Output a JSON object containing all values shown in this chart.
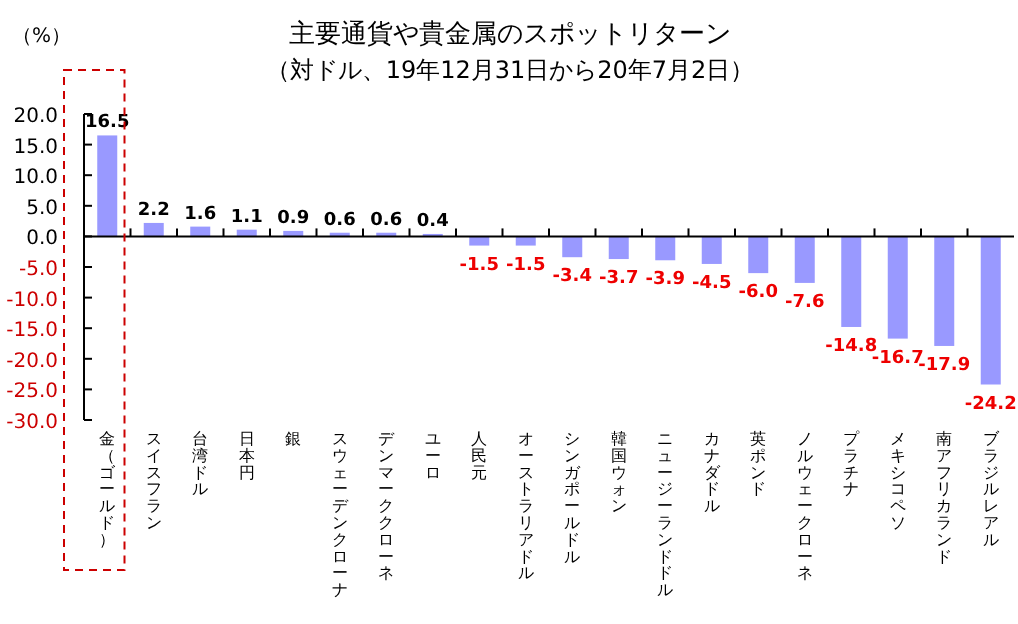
{
  "chart_data": {
    "type": "bar",
    "title": "主要通貨や貴金属のスポットリターン",
    "subtitle": "（対ドル、19年12月31日から20年7月2日）",
    "ylabel": "（%）",
    "categories": [
      "金（ゴールド）",
      "スイスフラン",
      "台湾ドル",
      "日本円",
      "銀",
      "スウェーデンクローナ",
      "デンマーククローネ",
      "ユーロ",
      "人民元",
      "オーストラリアドル",
      "シンガポールドル",
      "韓国ウォン",
      "ニュージーランドドル",
      "カナダドル",
      "英ポンド",
      "ノルウェークローネ",
      "プラチナ",
      "メキシコペソ",
      "南アフリカランド",
      "ブラジルレアル"
    ],
    "values": [
      16.5,
      2.2,
      1.6,
      1.1,
      0.9,
      0.6,
      0.6,
      0.4,
      -1.5,
      -1.5,
      -3.4,
      -3.7,
      -3.9,
      -4.5,
      -6.0,
      -7.6,
      -14.8,
      -16.7,
      -17.9,
      -24.2
    ],
    "value_labels": [
      "16.5",
      "2.2",
      "1.6",
      "1.1",
      "0.9",
      "0.6",
      "0.6",
      "0.4",
      "-1.5",
      "-1.5",
      "-3.4",
      "-3.7",
      "-3.9",
      "-4.5",
      "-6.0",
      "-7.6",
      "-14.8",
      "-16.7",
      "-17.9",
      "-24.2"
    ],
    "color": "#9999ff",
    "ylim": [
      -30,
      20
    ],
    "yticks": [
      {
        "value": 20,
        "label": "20.0"
      },
      {
        "value": 15,
        "label": "15.0"
      },
      {
        "value": 10,
        "label": "10.0"
      },
      {
        "value": 5,
        "label": "5.0"
      },
      {
        "value": 0,
        "label": "0.0"
      },
      {
        "value": -5,
        "label": "-5.0"
      },
      {
        "value": -10,
        "label": "-10.0"
      },
      {
        "value": -15,
        "label": "-15.0"
      },
      {
        "value": -20,
        "label": "-20.0"
      },
      {
        "value": -25,
        "label": "-25.0"
      },
      {
        "value": -30,
        "label": "-30.0"
      }
    ],
    "orientation": "vertical"
  }
}
